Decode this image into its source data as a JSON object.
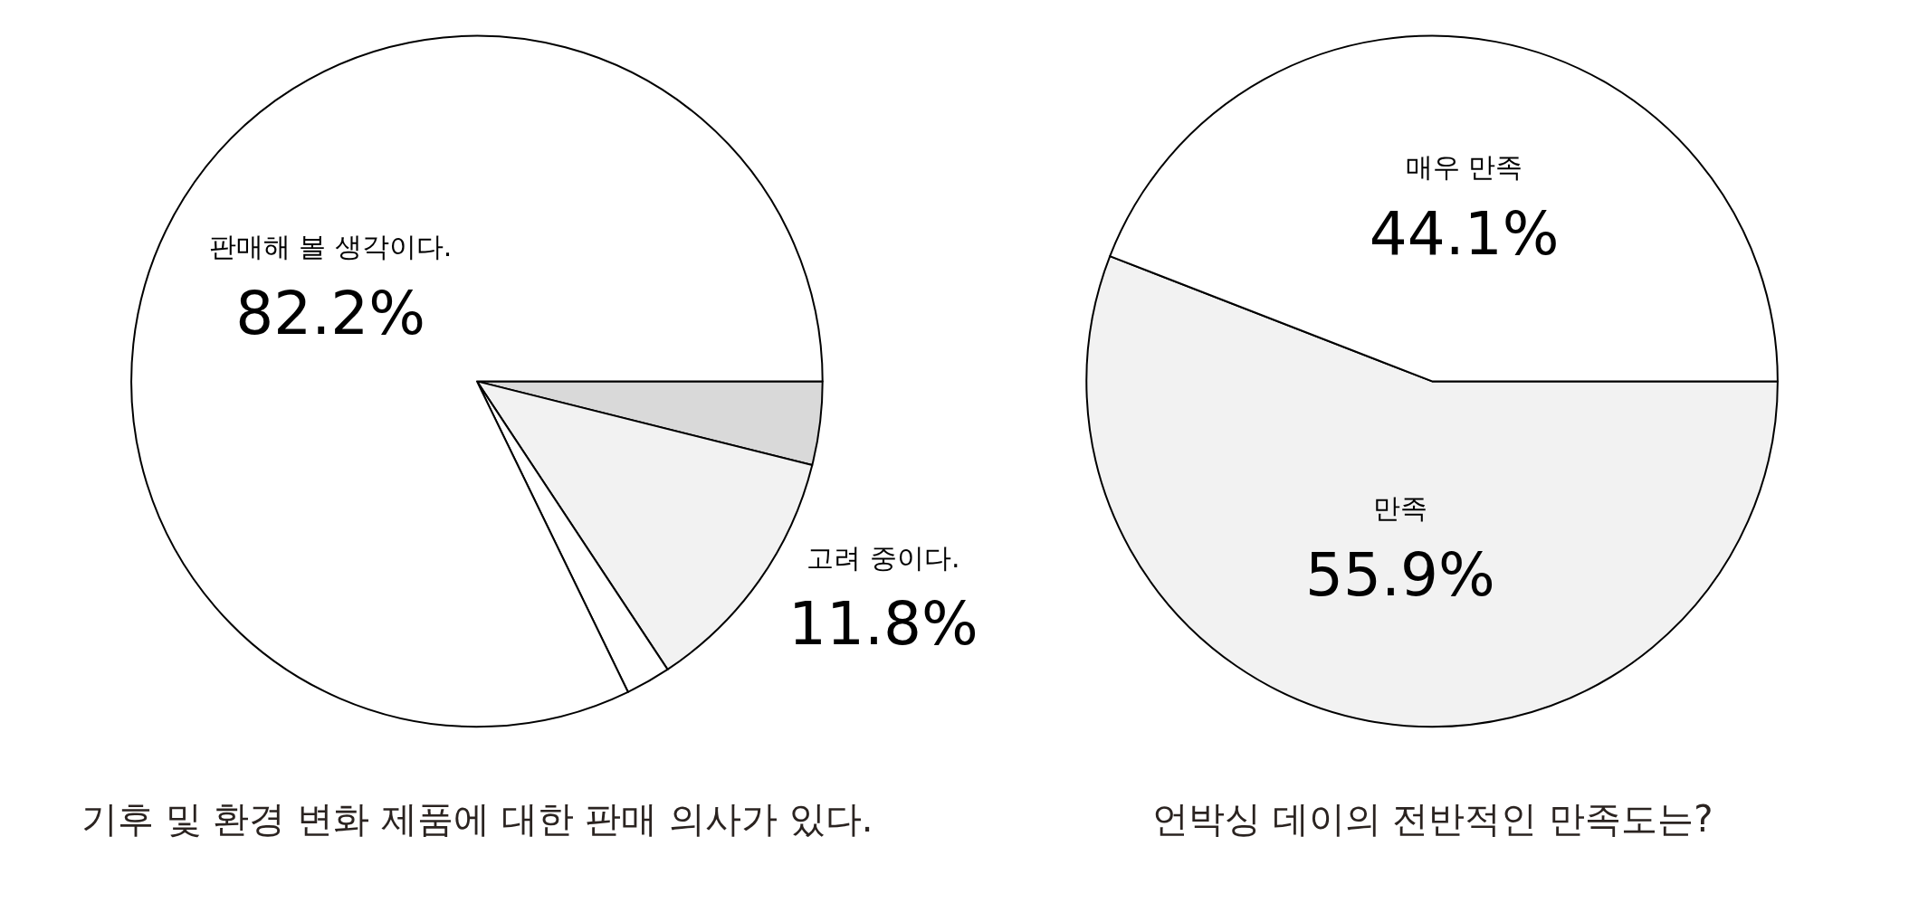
{
  "chart_data": [
    {
      "type": "pie",
      "title": "기후 및 환경 변화 제품에 대한 판매 의사가 있다.",
      "categories": [
        null,
        "고려 중이다.",
        null,
        "판매해 볼 생각이다."
      ],
      "values": [
        3.9,
        11.8,
        2.1,
        82.2
      ],
      "value_labels": [
        null,
        "11.8%",
        null,
        "82.2%"
      ],
      "colors": [
        "#d9d9d9",
        "#f2f2f2",
        "#ffffff",
        "#ffffff"
      ]
    },
    {
      "type": "pie",
      "title": "언박싱 데이의 전반적인 만족도는?",
      "categories": [
        "만족",
        "매우 만족"
      ],
      "values": [
        55.9,
        44.1
      ],
      "value_labels": [
        "55.9%",
        "44.1%"
      ],
      "colors": [
        "#f2f2f2",
        "#ffffff"
      ]
    }
  ]
}
